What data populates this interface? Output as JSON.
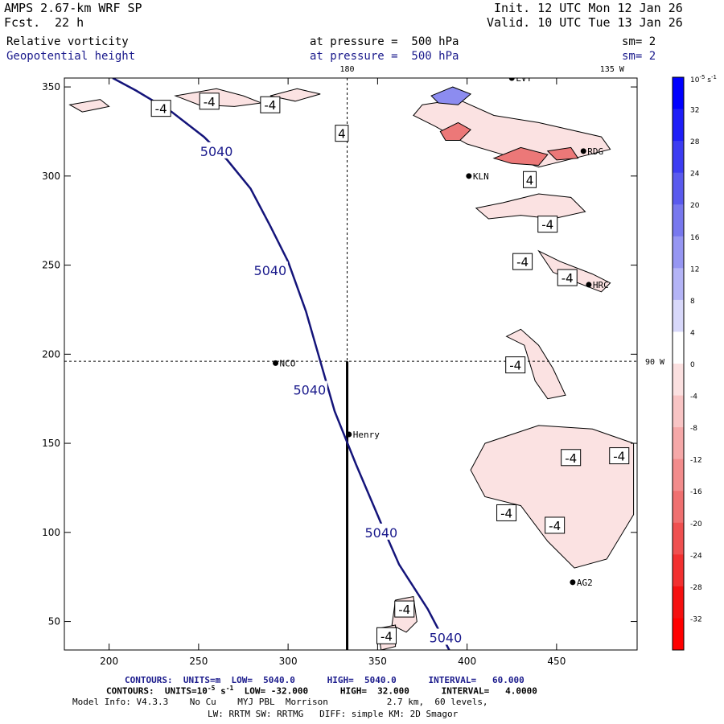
{
  "header": {
    "model": "AMPS 2.67-km WRF SP",
    "fcst_label": "Fcst.",
    "fcst_value": "22 h",
    "init": "Init. 12 UTC Mon 12 Jan 26",
    "valid": "Valid. 10 UTC Tue 13 Jan 26",
    "field1": "Relative vorticity",
    "field1_level": "at pressure =  500 hPa",
    "field1_sm": "sm= 2",
    "field2": "Geopotential height",
    "field2_level": "at pressure =  500 hPa",
    "field2_sm": "sm= 2"
  },
  "footer": {
    "contours1": "CONTOURS:  UNITS=m  LOW=  5040.0      HIGH=  5040.0      INTERVAL=   60.000",
    "contours2_pre": "CONTOURS:  UNITS=10",
    "contours2_exp": "-5",
    "contours2_post": " s",
    "contours2_exp2": "-1",
    "contours2_tail": "  LOW= -32.000      HIGH=  32.000      INTERVAL=   4.0000",
    "model_info": "Model Info: V4.3.3    No Cu    MYJ PBL  Morrison           2.7 km,  60 levels,",
    "model_info2": "LW: RRTM SW: RRTMG   DIFF: simple KM: 2D Smagor"
  },
  "chart_data": {
    "type": "contour-map",
    "x_range": [
      175,
      495
    ],
    "y_range": [
      34,
      355
    ],
    "x_ticks": [
      200,
      250,
      300,
      350,
      400,
      450
    ],
    "y_ticks": [
      50,
      100,
      150,
      200,
      250,
      300,
      350
    ],
    "meridian_labels": [
      {
        "text": "180",
        "x": 333,
        "y": 355
      },
      {
        "text": "135 W",
        "x": 481,
        "y": 355
      },
      {
        "text": "90 W",
        "x": 495,
        "y": 196
      }
    ],
    "grid_lines": {
      "meridian_x": 333,
      "parallel_y": 196
    },
    "cross_section": {
      "x": 333,
      "y_from": 34,
      "y_to": 196
    },
    "height_contour": {
      "value": 5040,
      "points": [
        [
          202,
          355
        ],
        [
          215,
          348
        ],
        [
          235,
          336
        ],
        [
          253,
          322
        ],
        [
          266,
          309
        ],
        [
          279,
          293
        ],
        [
          290,
          272
        ],
        [
          300,
          252
        ],
        [
          310,
          224
        ],
        [
          318,
          196
        ],
        [
          326,
          168
        ],
        [
          338,
          138
        ],
        [
          352,
          105
        ],
        [
          362,
          82
        ],
        [
          378,
          57
        ],
        [
          390,
          34
        ]
      ],
      "labels": [
        {
          "text": "5040",
          "x": 260,
          "y": 314
        },
        {
          "text": "5040",
          "x": 290,
          "y": 247
        },
        {
          "text": "5040",
          "x": 312,
          "y": 180
        },
        {
          "text": "5040",
          "x": 352,
          "y": 100
        },
        {
          "text": "5040",
          "x": 388,
          "y": 41
        }
      ]
    },
    "stations": [
      {
        "name": "NCO",
        "x": 293,
        "y": 195
      },
      {
        "name": "Henry",
        "x": 334,
        "y": 155
      },
      {
        "name": "KLN",
        "x": 401,
        "y": 300
      },
      {
        "name": "RDG",
        "x": 465,
        "y": 314
      },
      {
        "name": "HRC",
        "x": 468,
        "y": 239
      },
      {
        "name": "AG2",
        "x": 459,
        "y": 72
      },
      {
        "name": "LVT",
        "x": 425,
        "y": 355
      }
    ],
    "vorticity_labels": [
      {
        "text": "-4",
        "x": 229,
        "y": 338
      },
      {
        "text": "-4",
        "x": 256,
        "y": 342
      },
      {
        "text": "-4",
        "x": 290,
        "y": 340
      },
      {
        "text": "4",
        "x": 330,
        "y": 324
      },
      {
        "text": "4",
        "x": 435,
        "y": 298
      },
      {
        "text": "-4",
        "x": 445,
        "y": 273
      },
      {
        "text": "-4",
        "x": 431,
        "y": 252
      },
      {
        "text": "-4",
        "x": 456,
        "y": 243
      },
      {
        "text": "-4",
        "x": 427,
        "y": 194
      },
      {
        "text": "-4",
        "x": 458,
        "y": 142
      },
      {
        "text": "-4",
        "x": 485,
        "y": 143
      },
      {
        "text": "-4",
        "x": 422,
        "y": 111
      },
      {
        "text": "-4",
        "x": 449,
        "y": 104
      },
      {
        "text": "-4",
        "x": 365,
        "y": 57
      },
      {
        "text": "-4",
        "x": 355,
        "y": 42
      }
    ],
    "negative_regions": [
      [
        [
          410,
          150
        ],
        [
          440,
          160
        ],
        [
          470,
          158
        ],
        [
          493,
          150
        ],
        [
          493,
          110
        ],
        [
          478,
          85
        ],
        [
          460,
          80
        ],
        [
          445,
          95
        ],
        [
          430,
          115
        ],
        [
          410,
          120
        ],
        [
          402,
          135
        ]
      ],
      [
        [
          422,
          210
        ],
        [
          432,
          205
        ],
        [
          438,
          185
        ],
        [
          445,
          175
        ],
        [
          455,
          177
        ],
        [
          448,
          192
        ],
        [
          440,
          205
        ],
        [
          430,
          214
        ]
      ],
      [
        [
          440,
          258
        ],
        [
          452,
          252
        ],
        [
          470,
          245
        ],
        [
          480,
          240
        ],
        [
          475,
          235
        ],
        [
          462,
          240
        ],
        [
          448,
          246
        ]
      ],
      [
        [
          405,
          282
        ],
        [
          420,
          285
        ],
        [
          440,
          290
        ],
        [
          458,
          288
        ],
        [
          466,
          280
        ],
        [
          448,
          276
        ],
        [
          430,
          278
        ],
        [
          412,
          276
        ]
      ],
      [
        [
          360,
          62
        ],
        [
          370,
          64
        ],
        [
          372,
          50
        ],
        [
          366,
          44
        ],
        [
          358,
          48
        ]
      ],
      [
        [
          350,
          46
        ],
        [
          360,
          48
        ],
        [
          360,
          36
        ],
        [
          352,
          34
        ]
      ],
      [
        [
          375,
          340
        ],
        [
          395,
          343
        ],
        [
          415,
          334
        ],
        [
          440,
          330
        ],
        [
          475,
          322
        ],
        [
          480,
          315
        ],
        [
          460,
          310
        ],
        [
          440,
          305
        ],
        [
          420,
          312
        ],
        [
          400,
          318
        ],
        [
          382,
          328
        ],
        [
          370,
          334
        ]
      ],
      [
        [
          237,
          345
        ],
        [
          260,
          349
        ],
        [
          275,
          345
        ],
        [
          285,
          341
        ],
        [
          270,
          339
        ],
        [
          250,
          340
        ]
      ],
      [
        [
          178,
          340
        ],
        [
          195,
          343
        ],
        [
          200,
          339
        ],
        [
          185,
          336
        ]
      ],
      [
        [
          290,
          345
        ],
        [
          305,
          349
        ],
        [
          318,
          346
        ],
        [
          304,
          342
        ]
      ]
    ],
    "strong_negative_regions": [
      [
        [
          385,
          325
        ],
        [
          395,
          330
        ],
        [
          402,
          326
        ],
        [
          396,
          320
        ],
        [
          388,
          320
        ]
      ],
      [
        [
          415,
          310
        ],
        [
          430,
          316
        ],
        [
          445,
          312
        ],
        [
          440,
          306
        ],
        [
          425,
          307
        ]
      ],
      [
        [
          445,
          314
        ],
        [
          458,
          316
        ],
        [
          462,
          310
        ],
        [
          450,
          309
        ]
      ]
    ],
    "positive_regions": [
      [
        [
          380,
          345
        ],
        [
          392,
          350
        ],
        [
          402,
          346
        ],
        [
          395,
          340
        ],
        [
          384,
          341
        ]
      ]
    ],
    "colorbar": {
      "title_base": "10",
      "title_exp": "-5",
      "title_unit": "s",
      "title_unit_exp": "-1",
      "ticks": [
        "32",
        "28",
        "24",
        "20",
        "16",
        "12",
        "8",
        "4",
        "0",
        "-4",
        "-8",
        "-12",
        "-16",
        "-20",
        "-24",
        "-28",
        "-32"
      ],
      "colors": [
        "#0000ff",
        "#1e1ef8",
        "#3c3cf2",
        "#5a5aee",
        "#7878ee",
        "#9696f2",
        "#b4b4f6",
        "#d8d8fa",
        "#ffffff",
        "#fbe0e0",
        "#f8c4c4",
        "#f5a8a8",
        "#f28c8c",
        "#ef7070",
        "#ef5050",
        "#f23030",
        "#f51010",
        "#ff0000"
      ]
    }
  }
}
